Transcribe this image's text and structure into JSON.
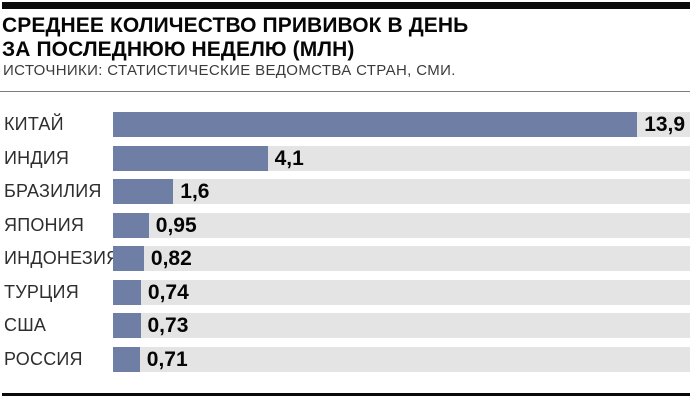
{
  "header": {
    "title_line1": "СРЕДНЕЕ КОЛИЧЕСТВО ПРИВИВОК В ДЕНЬ",
    "title_line2": "ЗА ПОСЛЕДНЮЮ НЕДЕЛЮ (МЛН)",
    "source": "ИСТОЧНИКИ: СТАТИСТИЧЕСКИЕ ВЕДОМСТВА СТРАН, СМИ."
  },
  "chart_data": {
    "type": "bar",
    "orientation": "horizontal",
    "title": "СРЕДНЕЕ КОЛИЧЕСТВО ПРИВИВОК В ДЕНЬ ЗА ПОСЛЕДНЮЮ НЕДЕЛЮ (МЛН)",
    "subtitle": "ИСТОЧНИКИ: СТАТИСТИЧЕСКИЕ ВЕДОМСТВА СТРАН, СМИ.",
    "unit": "млн",
    "categories": [
      "КИТАЙ",
      "ИНДИЯ",
      "БРАЗИЛИЯ",
      "ЯПОНИЯ",
      "ИНДОНЕЗИЯ",
      "ТУРЦИЯ",
      "США",
      "РОССИЯ"
    ],
    "values": [
      13.9,
      4.1,
      1.6,
      0.95,
      0.82,
      0.74,
      0.73,
      0.71
    ],
    "value_labels": [
      "13,9",
      "4,1",
      "1,6",
      "0,95",
      "0,82",
      "0,74",
      "0,73",
      "0,71"
    ],
    "xlim": [
      0,
      15.3
    ],
    "grid": false,
    "legend": false,
    "bar_color": "#6F7EA4",
    "track_color": "#E4E4E4"
  },
  "colors": {
    "background": "#FFFFFF",
    "border_bars": "#0A0A0A",
    "title_text": "#060606",
    "source_text": "#3B3B3B",
    "divider": "#7D7D7D",
    "category_text": "#2E2E2E",
    "value_text": "#050505"
  }
}
